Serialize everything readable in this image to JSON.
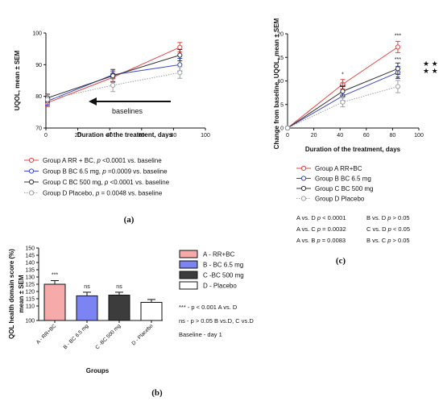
{
  "panel_labels": {
    "a": "(a)",
    "b": "(b)",
    "c": "(c)"
  },
  "colors": {
    "A": "#e8433f",
    "B": "#3a48d0",
    "C": "#333333",
    "D": "#a0a0a0",
    "barA": "#f6aaaa",
    "barB": "#7b84f2",
    "barC": "#3c3c3c",
    "barD": "#ffffff"
  },
  "chart_data": [
    {
      "id": "a",
      "type": "line",
      "ylabel": "UQOL, mean ± SEM",
      "xlabel": "Duration of the treatment, days",
      "xlim": [
        0,
        100
      ],
      "ylim": [
        70,
        100
      ],
      "xticks": [
        0,
        20,
        40,
        60,
        80,
        100
      ],
      "yticks": [
        70,
        80,
        90,
        100
      ],
      "x": [
        1,
        42,
        84
      ],
      "series": [
        {
          "key": "A",
          "values": [
            78.0,
            86.0,
            95.5
          ],
          "errors": [
            1.2,
            1.3,
            1.5
          ]
        },
        {
          "key": "B",
          "values": [
            78.5,
            86.8,
            90.0
          ],
          "errors": [
            1.3,
            1.2,
            2.0
          ]
        },
        {
          "key": "C",
          "values": [
            79.5,
            86.5,
            93.0
          ],
          "errors": [
            1.2,
            2.0,
            1.8
          ]
        },
        {
          "key": "D",
          "values": [
            79.0,
            83.5,
            87.5
          ],
          "errors": [
            1.5,
            2.0,
            1.8
          ]
        }
      ],
      "annotation": "baselines",
      "legend": [
        {
          "key": "A",
          "pre": "Group A RR + BC, ",
          "p": "p",
          "post": " <0.0001 vs. baseline"
        },
        {
          "key": "B",
          "pre": "Group B BC 6.5 mg, ",
          "p": "p",
          "post": " =0.0009 vs. baseline"
        },
        {
          "key": "C",
          "pre": "Group C BC 500 mg, ",
          "p": "p",
          "post": " <0.0001 vs. baseline"
        },
        {
          "key": "D",
          "pre": "Group D Placebo, ",
          "p": "p",
          "post": " = 0.0048 vs. baseline"
        }
      ]
    },
    {
      "id": "c",
      "type": "line",
      "ylabel": "Change from baseline, UQOL, mean ± SEM",
      "xlabel": "Duration of the treatment, days",
      "xlim": [
        0,
        100
      ],
      "ylim": [
        0,
        20
      ],
      "xticks": [
        0,
        20,
        40,
        60,
        80,
        100
      ],
      "yticks": [
        0,
        5,
        10,
        15,
        20
      ],
      "x": [
        0,
        42,
        84
      ],
      "series": [
        {
          "key": "A",
          "values": [
            0,
            9.3,
            17.2
          ],
          "errors": [
            0,
            1.0,
            1.2
          ]
        },
        {
          "key": "B",
          "values": [
            0,
            6.8,
            11.8
          ],
          "errors": [
            0,
            1.0,
            1.3
          ]
        },
        {
          "key": "C",
          "values": [
            0,
            7.8,
            12.6
          ],
          "errors": [
            0,
            1.0,
            1.2
          ]
        },
        {
          "key": "D",
          "values": [
            0,
            5.5,
            8.8
          ],
          "errors": [
            0,
            1.0,
            1.3
          ]
        }
      ],
      "marks_top": {
        "a42": "*",
        "a84": "***",
        "b84": "***",
        "d42": "*",
        "d84": "**",
        "c42": "***"
      },
      "stars_right": [
        "★ ★",
        "★ ★"
      ],
      "legend": [
        {
          "key": "A",
          "label": "Group A RR+BC"
        },
        {
          "key": "B",
          "label": "Group B BC 6.5 mg"
        },
        {
          "key": "C",
          "label": "Group C BC 500 mg"
        },
        {
          "key": "D",
          "label": "Group D Placebo"
        }
      ],
      "comparisons": [
        [
          "A vs. D ",
          "p",
          " < 0.0001",
          "B vs. D ",
          "p",
          " > 0.05"
        ],
        [
          "A vs. C ",
          "p",
          " = 0.0032",
          "C vs. D ",
          "p",
          " < 0.05"
        ],
        [
          "A vs. B ",
          "p",
          " = 0.0083",
          "B vs. C ",
          "p",
          " > 0.05"
        ]
      ]
    },
    {
      "id": "b",
      "type": "bar",
      "ylabel": "QOL health domain score (%)",
      "ylabel2": "mean ± SEM",
      "xlabel": "Groups",
      "ylim": [
        100,
        150
      ],
      "yticks": [
        100,
        110,
        115,
        120,
        125,
        130,
        135,
        140,
        145,
        150
      ],
      "categories": [
        "A - RR+BC",
        "B - BC 6.5 mg",
        "C -BC 500 mg",
        "D - Placebo"
      ],
      "values": [
        125.0,
        117.0,
        117.5,
        112.5
      ],
      "errors": [
        2.5,
        2.5,
        2.0,
        2.0
      ],
      "sig": [
        "***",
        "ns",
        "ns",
        ""
      ],
      "legend": [
        {
          "key": "barA",
          "label": "A - RR+BC"
        },
        {
          "key": "barB",
          "label": "B - BC 6.5 mg"
        },
        {
          "key": "barC",
          "label": "C -BC 500 mg"
        },
        {
          "key": "barD",
          "label": "D - Placebo"
        }
      ],
      "notes": [
        "*** - p < 0.001 A vs. D",
        "ns - p > 0.05 B vs.D, C vs.D",
        "Baseline - day 1"
      ]
    }
  ]
}
